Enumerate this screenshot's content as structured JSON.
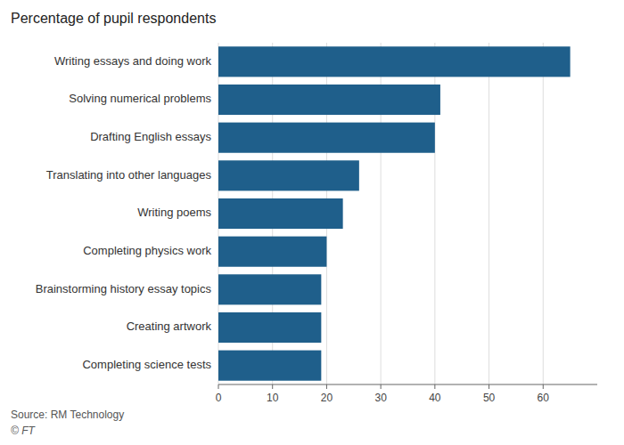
{
  "chart_data": {
    "type": "bar",
    "orientation": "horizontal",
    "title": "Percentage of pupil respondents",
    "categories": [
      "Completing science tests",
      "Creating artwork",
      "Brainstorming history essay topics",
      "Completing physics work",
      "Writing poems",
      "Translating into other languages",
      "Drafting English essays",
      "Solving numerical problems",
      "Writing essays and doing work"
    ],
    "values": [
      19,
      19,
      19,
      20,
      23,
      26,
      40,
      41,
      65
    ],
    "color": "#1f5f8b",
    "xlim": [
      0,
      70
    ],
    "xticks": [
      0,
      10,
      20,
      30,
      40,
      50,
      60
    ],
    "grid": true,
    "annotations": [
      "Source: RM Technology",
      "© FT"
    ]
  }
}
